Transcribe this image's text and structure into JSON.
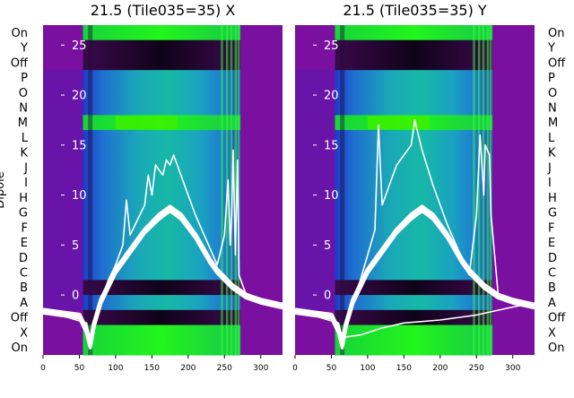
{
  "chart_data": [
    {
      "type": "heatmap",
      "title": "21.5 (Tile035=35) X",
      "ylabel": "Dipole",
      "xlim": [
        0,
        330
      ],
      "x_ticks": [
        "0",
        "50",
        "100",
        "150",
        "200",
        "250",
        "300"
      ],
      "y_cat_labels": [
        "On",
        "X",
        "Off",
        "A",
        "B",
        "C",
        "D",
        "E",
        "F",
        "G",
        "H",
        "I",
        "J",
        "K",
        "L",
        "M",
        "N",
        "O",
        "P",
        "Off",
        "Y",
        "On"
      ],
      "ylim": [
        -6,
        27
      ],
      "y_ticks": [
        "0",
        "5",
        "10",
        "15",
        "20",
        "25"
      ],
      "series": [
        {
          "values": [
            [
              0,
              -1.5
            ],
            [
              30,
              -1.8
            ],
            [
              50,
              -2.0
            ],
            [
              60,
              -3.5
            ],
            [
              65,
              -5.0
            ],
            [
              70,
              -3.0
            ],
            [
              80,
              -0.5
            ],
            [
              90,
              1.0
            ],
            [
              100,
              2.5
            ],
            [
              120,
              4.5
            ],
            [
              140,
              6.5
            ],
            [
              160,
              8.0
            ],
            [
              175,
              8.8
            ],
            [
              190,
              8.0
            ],
            [
              210,
              6.0
            ],
            [
              230,
              3.5
            ],
            [
              240,
              2.5
            ],
            [
              260,
              1.0
            ],
            [
              280,
              0.0
            ],
            [
              300,
              -0.5
            ],
            [
              330,
              -1.0
            ]
          ]
        },
        {
          "values": [
            [
              0,
              -1.8
            ],
            [
              30,
              -2.1
            ],
            [
              50,
              -2.3
            ],
            [
              60,
              -3.8
            ],
            [
              65,
              -5.3
            ],
            [
              70,
              -3.3
            ],
            [
              80,
              -0.8
            ],
            [
              90,
              0.7
            ],
            [
              100,
              2.2
            ],
            [
              120,
              4.2
            ],
            [
              140,
              6.2
            ],
            [
              160,
              7.6
            ],
            [
              175,
              8.4
            ],
            [
              190,
              7.6
            ],
            [
              210,
              5.7
            ],
            [
              230,
              3.2
            ],
            [
              240,
              2.2
            ],
            [
              260,
              0.7
            ],
            [
              280,
              -0.3
            ],
            [
              300,
              -0.8
            ],
            [
              330,
              -1.3
            ]
          ]
        },
        {
          "values": [
            [
              0,
              -1.5
            ],
            [
              60,
              -2.8
            ],
            [
              65,
              -4.5
            ],
            [
              70,
              -2.5
            ],
            [
              90,
              1.5
            ],
            [
              100,
              3.0
            ],
            [
              110,
              5.0
            ],
            [
              115,
              9.5
            ],
            [
              120,
              6.0
            ],
            [
              130,
              7.5
            ],
            [
              140,
              9.0
            ],
            [
              145,
              12.0
            ],
            [
              150,
              10.0
            ],
            [
              155,
              13.0
            ],
            [
              165,
              12.0
            ],
            [
              170,
              13.5
            ],
            [
              175,
              13.0
            ],
            [
              180,
              14.0
            ],
            [
              185,
              13.0
            ],
            [
              190,
              12.0
            ],
            [
              200,
              10.0
            ],
            [
              210,
              8.0
            ],
            [
              240,
              3.0
            ],
            [
              250,
              6.0
            ],
            [
              255,
              11.5
            ],
            [
              258,
              5.0
            ],
            [
              260,
              8.0
            ],
            [
              262,
              14.5
            ],
            [
              265,
              4.0
            ],
            [
              268,
              13.5
            ],
            [
              270,
              2.0
            ],
            [
              280,
              0.0
            ],
            [
              300,
              -0.5
            ],
            [
              330,
              -1.0
            ]
          ]
        }
      ]
    },
    {
      "type": "heatmap",
      "title": "21.5 (Tile035=35) Y",
      "ylabel": "",
      "xlim": [
        0,
        330
      ],
      "x_ticks": [
        "0",
        "50",
        "100",
        "150",
        "200",
        "250",
        "300"
      ],
      "y_cat_labels": [
        "On",
        "X",
        "Off",
        "A",
        "B",
        "C",
        "D",
        "E",
        "F",
        "G",
        "H",
        "I",
        "J",
        "K",
        "L",
        "M",
        "N",
        "O",
        "P",
        "Off",
        "Y",
        "On"
      ],
      "ylim": [
        -6,
        27
      ],
      "y_ticks": [
        "0",
        "5",
        "10",
        "15",
        "20",
        "25"
      ],
      "series": [
        {
          "values": [
            [
              0,
              -1.5
            ],
            [
              30,
              -1.8
            ],
            [
              50,
              -2.0
            ],
            [
              60,
              -3.5
            ],
            [
              65,
              -5.0
            ],
            [
              70,
              -3.0
            ],
            [
              80,
              -0.5
            ],
            [
              90,
              1.0
            ],
            [
              100,
              2.5
            ],
            [
              120,
              4.5
            ],
            [
              140,
              6.5
            ],
            [
              160,
              8.0
            ],
            [
              175,
              8.8
            ],
            [
              190,
              8.0
            ],
            [
              210,
              6.0
            ],
            [
              230,
              3.5
            ],
            [
              240,
              2.5
            ],
            [
              260,
              1.0
            ],
            [
              280,
              0.0
            ],
            [
              300,
              -0.5
            ],
            [
              330,
              -1.0
            ]
          ]
        },
        {
          "values": [
            [
              0,
              -1.8
            ],
            [
              30,
              -2.1
            ],
            [
              50,
              -2.3
            ],
            [
              60,
              -3.8
            ],
            [
              65,
              -5.3
            ],
            [
              70,
              -3.3
            ],
            [
              80,
              -0.8
            ],
            [
              90,
              0.7
            ],
            [
              100,
              2.2
            ],
            [
              120,
              4.2
            ],
            [
              140,
              6.2
            ],
            [
              160,
              7.6
            ],
            [
              175,
              8.4
            ],
            [
              190,
              7.6
            ],
            [
              210,
              5.7
            ],
            [
              230,
              3.2
            ],
            [
              240,
              2.2
            ],
            [
              260,
              0.7
            ],
            [
              280,
              -0.3
            ],
            [
              300,
              -0.8
            ],
            [
              330,
              -1.3
            ]
          ]
        },
        {
          "values": [
            [
              0,
              -1.5
            ],
            [
              60,
              -2.8
            ],
            [
              65,
              -4.5
            ],
            [
              70,
              -2.5
            ],
            [
              90,
              1.5
            ],
            [
              100,
              4.0
            ],
            [
              110,
              6.5
            ],
            [
              115,
              17.0
            ],
            [
              120,
              9.0
            ],
            [
              130,
              11.0
            ],
            [
              140,
              13.0
            ],
            [
              150,
              14.0
            ],
            [
              160,
              15.0
            ],
            [
              165,
              17.5
            ],
            [
              170,
              16.0
            ],
            [
              175,
              14.5
            ],
            [
              190,
              11.0
            ],
            [
              210,
              7.0
            ],
            [
              240,
              2.0
            ],
            [
              250,
              8.0
            ],
            [
              255,
              16.0
            ],
            [
              260,
              10.0
            ],
            [
              262,
              15.0
            ],
            [
              268,
              14.0
            ],
            [
              270,
              8.0
            ],
            [
              280,
              0.0
            ],
            [
              300,
              -0.5
            ],
            [
              330,
              -1.0
            ]
          ]
        },
        {
          "values": [
            [
              50,
              -2.5
            ],
            [
              60,
              -3.5
            ],
            [
              70,
              -4.2
            ],
            [
              90,
              -4.0
            ],
            [
              120,
              -3.3
            ],
            [
              150,
              -2.8
            ],
            [
              200,
              -2.5
            ],
            [
              250,
              -2.0
            ],
            [
              300,
              -1.2
            ],
            [
              330,
              -0.8
            ]
          ]
        }
      ]
    }
  ]
}
